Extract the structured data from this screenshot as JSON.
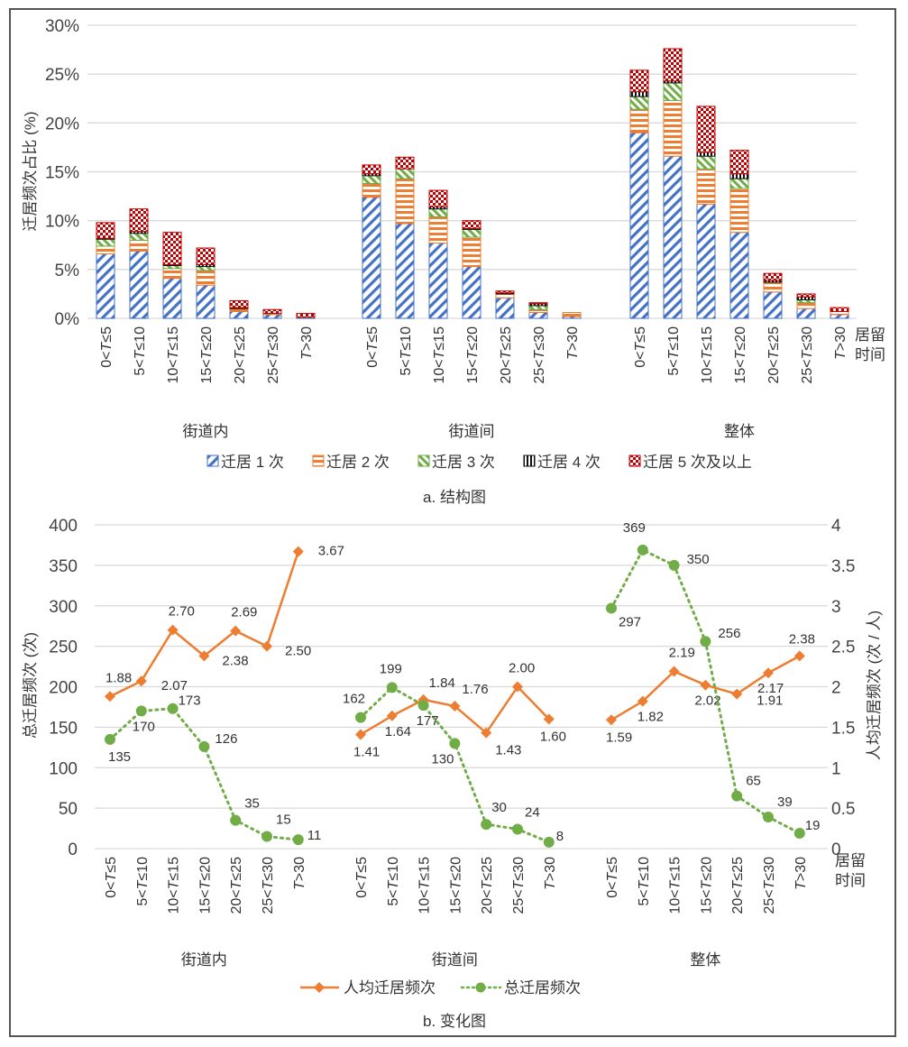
{
  "chart_data": [
    {
      "type": "bar",
      "stacked": true,
      "caption": "a. 结构图",
      "ylabel": "迁居频次占比 (%)",
      "xlabel": "居留时间",
      "ylim": [
        0,
        30
      ],
      "yticks": [
        "0%",
        "5%",
        "10%",
        "15%",
        "20%",
        "25%",
        "30%"
      ],
      "grid": true,
      "legend_position": "bottom",
      "groups": [
        "街道内",
        "街道间",
        "整体"
      ],
      "categories": [
        "0<T≤5",
        "5<T≤10",
        "10<T≤15",
        "15<T≤20",
        "20<T≤25",
        "25<T≤30",
        "T>30"
      ],
      "series": [
        {
          "name": "迁居 1 次",
          "color": "#4472C4",
          "pattern": "diagonal",
          "values": [
            [
              6.6,
              6.9,
              4.1,
              3.4,
              0.7,
              0.4,
              0.1
            ],
            [
              12.4,
              9.7,
              7.7,
              5.3,
              2.1,
              0.6,
              0.2
            ],
            [
              19.0,
              16.6,
              11.7,
              8.8,
              2.7,
              1.0,
              0.4
            ]
          ]
        },
        {
          "name": "迁居 2 次",
          "color": "#ED7D31",
          "pattern": "horizontal",
          "values": [
            [
              0.8,
              1.1,
              1.0,
              1.5,
              0.3,
              0.1,
              0.0
            ],
            [
              1.4,
              4.6,
              2.7,
              3.0,
              0.4,
              0.3,
              0.4
            ],
            [
              2.4,
              5.7,
              3.6,
              4.5,
              1.0,
              0.6,
              0.3
            ]
          ]
        },
        {
          "name": "迁居 3 次",
          "color": "#70AD47",
          "pattern": "diagonal-up",
          "values": [
            [
              0.7,
              0.7,
              0.3,
              0.4,
              0.0,
              0.0,
              0.0
            ],
            [
              0.8,
              1.0,
              0.8,
              0.8,
              0.0,
              0.4,
              0.0
            ],
            [
              1.3,
              1.8,
              1.3,
              1.0,
              0.0,
              0.3,
              0.0
            ]
          ]
        },
        {
          "name": "迁居 4 次",
          "color": "#111111",
          "pattern": "vertical",
          "values": [
            [
              0.1,
              0.2,
              0.1,
              0.2,
              0.1,
              0.0,
              0.0
            ],
            [
              0.2,
              0.0,
              0.2,
              0.1,
              0.1,
              0.2,
              0.0
            ],
            [
              0.5,
              0.2,
              0.4,
              0.5,
              0.2,
              0.3,
              0.0
            ]
          ]
        },
        {
          "name": "迁居 5 次及以上",
          "color": "#C00000",
          "pattern": "checker",
          "values": [
            [
              1.6,
              2.3,
              3.3,
              1.7,
              0.7,
              0.4,
              0.4
            ],
            [
              0.9,
              1.2,
              1.7,
              0.8,
              0.2,
              0.1,
              0.0
            ],
            [
              2.2,
              3.3,
              4.7,
              2.4,
              0.7,
              0.3,
              0.4
            ]
          ]
        }
      ]
    },
    {
      "type": "line",
      "caption": "b. 变化图",
      "ylabel_left": "总迁居频次 (次)",
      "ylabel_right": "人均迁居频次 (次 / 人)",
      "xlabel": "居留时间",
      "ylim_left": [
        0,
        400
      ],
      "ylim_right": [
        0,
        4
      ],
      "yticks_left": [
        "0",
        "50",
        "100",
        "150",
        "200",
        "250",
        "300",
        "350",
        "400"
      ],
      "yticks_right": [
        "0",
        "0.5",
        "1",
        "1.5",
        "2",
        "2.5",
        "3",
        "3.5",
        "4"
      ],
      "grid": true,
      "legend_position": "bottom",
      "groups": [
        "街道内",
        "街道间",
        "整体"
      ],
      "categories": [
        "0<T≤5",
        "5<T≤10",
        "10<T≤15",
        "15<T≤20",
        "20<T≤25",
        "25<T≤30",
        "T>30"
      ],
      "series": [
        {
          "name": "人均迁居频次",
          "axis": "right",
          "color": "#ED7D31",
          "style": "solid",
          "marker": "diamond",
          "values": [
            [
              1.88,
              2.07,
              2.7,
              2.38,
              2.69,
              2.5,
              3.67
            ],
            [
              1.41,
              1.64,
              1.84,
              1.76,
              1.43,
              2.0,
              1.6
            ],
            [
              1.59,
              1.82,
              2.19,
              2.02,
              1.91,
              2.17,
              2.38
            ]
          ],
          "labels": [
            [
              "1.88",
              "2.07",
              "2.70",
              "2.38",
              "2.69",
              "2.50",
              "3.67"
            ],
            [
              "1.41",
              "1.64",
              "1.84",
              "1.76",
              "1.43",
              "2.00",
              "1.60"
            ],
            [
              "1.59",
              "1.82",
              "2.19",
              "2.02",
              "1.91",
              "2.17",
              "2.38"
            ]
          ]
        },
        {
          "name": "总迁居频次",
          "axis": "left",
          "color": "#70AD47",
          "style": "dotted",
          "marker": "circle",
          "values": [
            [
              135,
              170,
              173,
              126,
              35,
              15,
              11
            ],
            [
              162,
              199,
              177,
              130,
              30,
              24,
              8
            ],
            [
              297,
              369,
              350,
              256,
              65,
              39,
              19
            ]
          ],
          "labels": [
            [
              "135",
              "170",
              "173",
              "126",
              "35",
              "15",
              "11"
            ],
            [
              "162",
              "199",
              "177",
              "130",
              "30",
              "24",
              "8"
            ],
            [
              "297",
              "369",
              "350",
              "256",
              "65",
              "39",
              "19"
            ]
          ]
        }
      ]
    }
  ]
}
